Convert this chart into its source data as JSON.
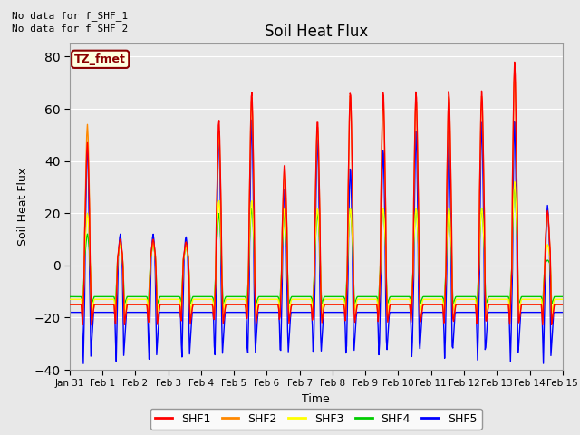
{
  "title": "Soil Heat Flux",
  "xlabel": "Time",
  "ylabel": "Soil Heat Flux",
  "ylim": [
    -40,
    85
  ],
  "yticks": [
    -40,
    -20,
    0,
    20,
    40,
    60,
    80
  ],
  "plot_bg_color": "#e8e8e8",
  "fig_bg_color": "#e8e8e8",
  "annotations": [
    "No data for f_SHF_1",
    "No data for f_SHF_2"
  ],
  "tz_label": "TZ_fmet",
  "colors": {
    "SHF1": "#ff0000",
    "SHF2": "#ff8800",
    "SHF3": "#ffff00",
    "SHF4": "#00cc00",
    "SHF5": "#0000ff"
  },
  "date_labels": [
    "Jan 31",
    "Feb 1",
    "Feb 2",
    "Feb 3",
    "Feb 4",
    "Feb 5",
    "Feb 6",
    "Feb 7",
    "Feb 8",
    "Feb 9",
    "Feb 10",
    "Feb 11",
    "Feb 12",
    "Feb 13",
    "Feb 14",
    "Feb 15"
  ],
  "n_days": 15
}
